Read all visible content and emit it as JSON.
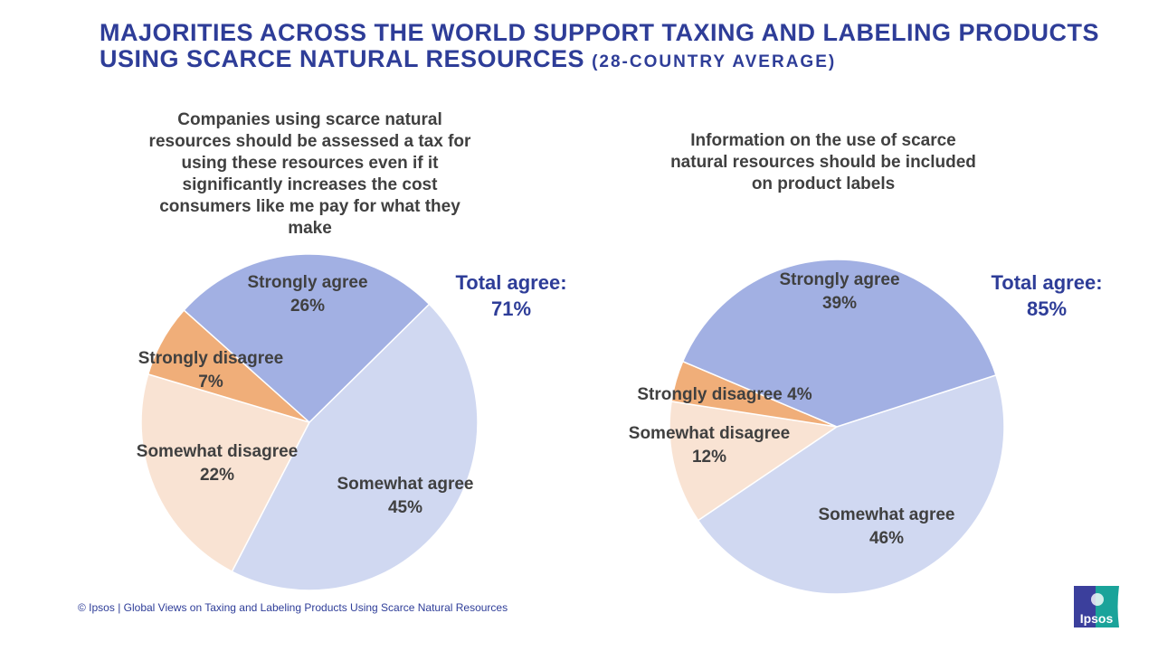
{
  "title": {
    "main": "MAJORITIES ACROSS THE WORLD SUPPORT TAXING AND LABELING PRODUCTS USING SCARCE NATURAL RESOURCES",
    "sub": "(28-COUNTRY AVERAGE)"
  },
  "colors": {
    "title": "#2E3D98",
    "strongly_agree": "#A2B0E3",
    "somewhat_agree": "#D0D8F1",
    "somewhat_disagree": "#F9E3D3",
    "strongly_disagree": "#F0AE79"
  },
  "chart_data": [
    {
      "type": "pie",
      "title": "Companies using scarce natural resources should be assessed a tax for using these resources even if it significantly increases the cost consumers like me pay for what they make",
      "total_label": "Total agree:",
      "total_value": "71%",
      "slices": [
        {
          "name": "Somewhat agree",
          "value": 45,
          "label": "45%"
        },
        {
          "name": "Somewhat disagree",
          "value": 22,
          "label": "22%"
        },
        {
          "name": "Strongly disagree",
          "value": 7,
          "label": "7%"
        },
        {
          "name": "Strongly agree",
          "value": 26,
          "label": "26%"
        }
      ]
    },
    {
      "type": "pie",
      "title": "Information on the use of scarce natural resources should be included on product labels",
      "total_label": "Total agree:",
      "total_value": "85%",
      "slices": [
        {
          "name": "Somewhat agree",
          "value": 46,
          "label": "46%"
        },
        {
          "name": "Somewhat disagree",
          "value": 12,
          "label": "12%"
        },
        {
          "name": "Strongly disagree",
          "value": 4,
          "label": "4%"
        },
        {
          "name": "Strongly agree",
          "value": 39,
          "label": "39%"
        }
      ]
    }
  ],
  "footer": "© Ipsos | Global Views on Taxing and Labeling Products Using Scarce Natural Resources",
  "logo": {
    "text": "Ipsos"
  }
}
